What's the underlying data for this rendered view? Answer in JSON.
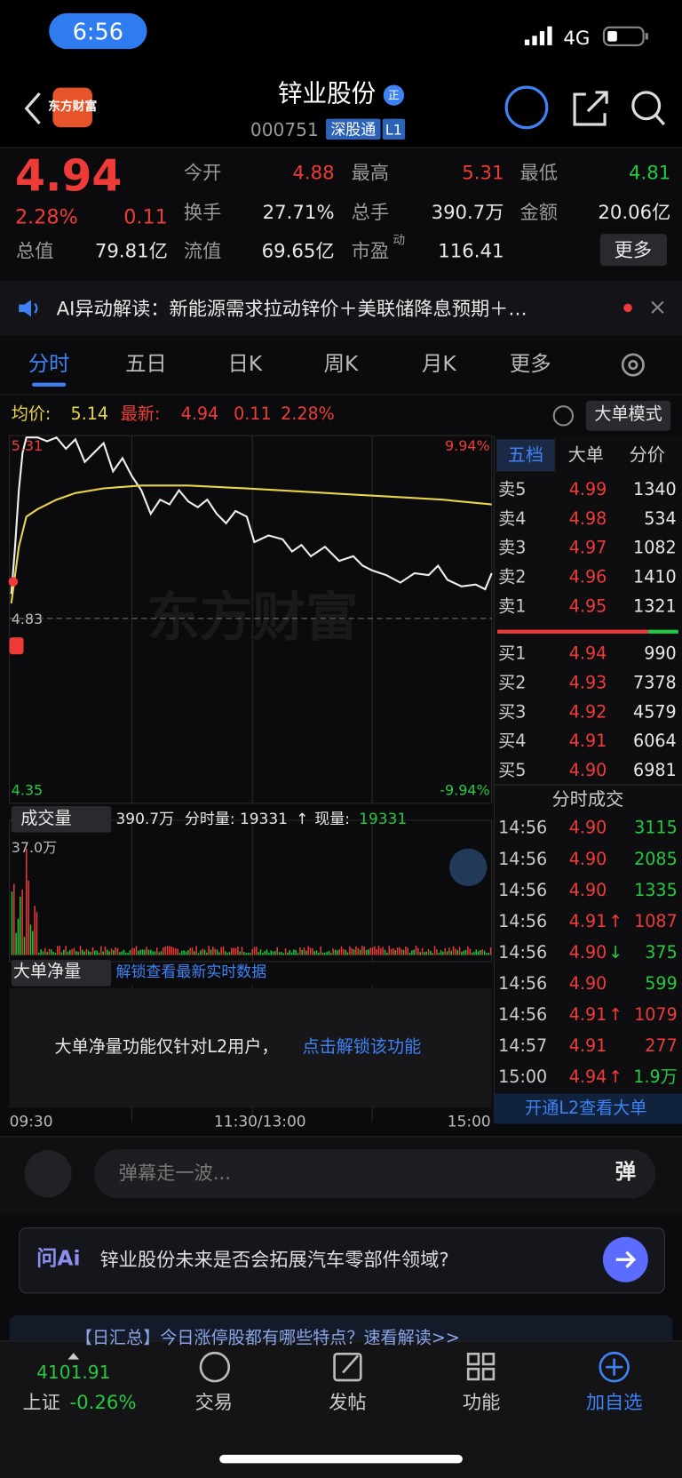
{
  "status": {
    "time": "6:56",
    "network": "4G"
  },
  "header": {
    "title": "锌业股份",
    "badge": "正",
    "code": "000751",
    "tag": "深股通",
    "level": "L1",
    "logo": "东方财富"
  },
  "quote": {
    "price": "4.94",
    "percent": "2.28%",
    "change": "0.11",
    "stats": [
      {
        "label": "今开",
        "value": "4.88"
      },
      {
        "label": "最高",
        "value": "5.31"
      },
      {
        "label": "最低",
        "value": "4.81"
      },
      {
        "label": "换手",
        "value": "27.71%"
      },
      {
        "label": "总手",
        "value": "390.7万"
      },
      {
        "label": "金额",
        "value": "20.06亿"
      },
      {
        "label": "总值",
        "value": "79.81亿"
      },
      {
        "label": "流值",
        "value": "69.65亿"
      },
      {
        "label": "市盈",
        "sup": "动",
        "value": "116.41"
      }
    ],
    "more": "更多"
  },
  "ticker": "AI异动解读：新能源需求拉动锌价＋美联储降息预期＋…",
  "tabs": [
    "分时",
    "五日",
    "日K",
    "周K",
    "月K",
    "更多"
  ],
  "chart": {
    "avg_label": "均价:",
    "avg": "5.14",
    "last_label": "最新:",
    "last": "4.94",
    "change": "0.11",
    "percent": "2.28%",
    "mode": "大单模式",
    "high": "5.31",
    "high_pct": "9.94%",
    "prev_close": "4.83",
    "low": "4.35",
    "low_pct": "-9.94%",
    "watermark": "东方财富",
    "times": [
      "09:30",
      "11:30/13:00",
      "15:00"
    ]
  },
  "volume": {
    "label": "成交量",
    "total": "390.7万",
    "minute": "分时量: 19331",
    "arrow": "↑",
    "current_label": "现量:",
    "current": "19331",
    "max": "37.0万"
  },
  "big_order": {
    "label": "大单净量",
    "unlock": "解锁查看最新实时数据",
    "notice": "大单净量功能仅针对L2用户，",
    "link": "点击解锁该功能"
  },
  "order_tabs": [
    "五档",
    "大单",
    "分价"
  ],
  "asks": [
    {
      "label": "卖5",
      "price": "4.99",
      "volume": "1340"
    },
    {
      "label": "卖4",
      "price": "4.98",
      "volume": "534"
    },
    {
      "label": "卖3",
      "price": "4.97",
      "volume": "1082"
    },
    {
      "label": "卖2",
      "price": "4.96",
      "volume": "1410"
    },
    {
      "label": "卖1",
      "price": "4.95",
      "volume": "1321"
    }
  ],
  "bids": [
    {
      "label": "买1",
      "price": "4.94",
      "volume": "990"
    },
    {
      "label": "买2",
      "price": "4.93",
      "volume": "7378"
    },
    {
      "label": "买3",
      "price": "4.92",
      "volume": "4579"
    },
    {
      "label": "买4",
      "price": "4.91",
      "volume": "6064"
    },
    {
      "label": "买5",
      "price": "4.90",
      "volume": "6981"
    }
  ],
  "trades_title": "分时成交",
  "trades": [
    {
      "time": "14:56",
      "price": "4.90",
      "volume": "3115",
      "color": "#25c940"
    },
    {
      "time": "14:56",
      "price": "4.90",
      "volume": "2085",
      "color": "#25c940"
    },
    {
      "time": "14:56",
      "price": "4.90",
      "volume": "1335",
      "color": "#25c940"
    },
    {
      "time": "14:56",
      "price": "4.91",
      "direction": "↑",
      "volume": "1087",
      "color": "#ef3b38"
    },
    {
      "time": "14:56",
      "price": "4.90",
      "direction": "↓",
      "volume": "375",
      "color": "#25c940"
    },
    {
      "time": "14:56",
      "price": "4.90",
      "volume": "599",
      "color": "#25c940"
    },
    {
      "time": "14:56",
      "price": "4.91",
      "direction": "↑",
      "volume": "1079",
      "color": "#ef3b38"
    },
    {
      "time": "14:57",
      "price": "4.91",
      "volume": "277",
      "color": "#ef3b38"
    },
    {
      "time": "15:00",
      "price": "4.94",
      "direction": "↑",
      "volume": "1.9万",
      "color": "#25c940"
    }
  ],
  "l2_banner": "开通L2查看大单",
  "danmu": {
    "placeholder": "弹幕走一波...",
    "button": "弹"
  },
  "ask_ai": {
    "logo": "问Ai",
    "question": "锌业股份未来是否会拓展汽车零部件领域?"
  },
  "news": "【日汇总】今日涨停股都有哪些特点？速看解读>>",
  "nav": {
    "index_value": "4101.91",
    "index_name": "上证",
    "index_change": "-0.26%",
    "items": [
      "交易",
      "发帖",
      "功能",
      "加自选"
    ]
  }
}
